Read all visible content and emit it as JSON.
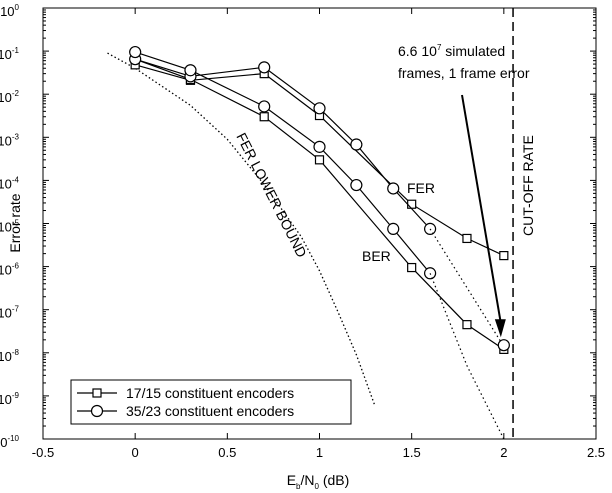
{
  "chart_data": {
    "type": "line",
    "title": "",
    "xlabel": "E_b/N_0 (dB)",
    "xlabel_parts": {
      "base": "E",
      "sub1": "b",
      "mid": "/N",
      "sub2": "0",
      "tail": " (dB)"
    },
    "ylabel": "Error rate",
    "xlim": [
      -0.5,
      2.5
    ],
    "ylim_log10": [
      -10,
      0
    ],
    "y_scale": "log",
    "x_ticks": [
      "-0.5",
      "0",
      "0.5",
      "1",
      "1.5",
      "2",
      "2.5"
    ],
    "x_tick_values": [
      -0.5,
      0,
      0.5,
      1,
      1.5,
      2,
      2.5
    ],
    "y_tick_exponents": [
      "0",
      "-1",
      "-2",
      "-3",
      "-4",
      "-5",
      "-6",
      "-7",
      "-8",
      "-9",
      "-10"
    ],
    "y_tick_base": "10",
    "series": [
      {
        "name": "17/15 constituent encoders",
        "marker": "square",
        "curves": [
          {
            "label": "FER",
            "x": [
              0,
              0.3,
              0.7,
              1.0,
              1.5,
              1.8,
              2.0
            ],
            "y": [
              0.048,
              0.021,
              0.03,
              0.0032,
              2.8e-05,
              4.5e-06,
              1.8e-06
            ]
          },
          {
            "label": "BER",
            "x": [
              0,
              0.3,
              0.7,
              1.0,
              1.5,
              1.8,
              2.0
            ],
            "y": [
              0.065,
              0.022,
              0.003,
              0.0003,
              9.5e-07,
              4.5e-08,
              1.2e-08
            ]
          }
        ]
      },
      {
        "name": "35/23 constituent encoders",
        "marker": "circle",
        "curves": [
          {
            "label": "FER",
            "x": [
              0,
              0.3,
              0.7,
              1.0,
              1.2,
              1.4,
              1.6
            ],
            "y": [
              0.065,
              0.026,
              0.042,
              0.0047,
              0.00068,
              6.5e-05,
              7.5e-06
            ]
          },
          {
            "label": "BER",
            "x": [
              0,
              0.3,
              0.7,
              1.0,
              1.2,
              1.4,
              1.6
            ],
            "y": [
              0.095,
              0.036,
              0.0052,
              0.0006,
              7.8e-05,
              7.5e-06,
              7e-07
            ]
          }
        ],
        "extrapolations": [
          {
            "x": [
              1.6,
              2.0
            ],
            "y": [
              7.5e-06,
              1.4e-08
            ]
          },
          {
            "x": [
              1.6,
              1.8,
              2.0
            ],
            "y": [
              7e-07,
              5e-09,
              1e-10
            ]
          }
        ],
        "final_point": {
          "x": 2.0,
          "y": 1.5e-08
        }
      }
    ],
    "lower_bound": {
      "label": "FER LOWER BOUND",
      "x": [
        -0.15,
        0.0,
        0.3,
        0.5,
        0.7,
        0.9,
        1.0,
        1.1,
        1.2,
        1.3
      ],
      "y": [
        0.09,
        0.04,
        0.0055,
        0.0009,
        8e-05,
        5e-06,
        8e-07,
        9e-08,
        9e-09,
        6e-10
      ]
    },
    "cutoff": {
      "label": "CUT-OFF RATE",
      "x": 2.05
    },
    "annotations": {
      "fer_label": "FER",
      "ber_label": "BER",
      "note_line1_prefix": "6.6 10",
      "note_line1_sup": "7",
      "note_line1_suffix": " simulated",
      "note_line2": "frames, 1 frame error"
    },
    "legend_position": "bottom-left",
    "grid": false,
    "colors": {
      "line": "#000000",
      "background": "#ffffff"
    }
  }
}
